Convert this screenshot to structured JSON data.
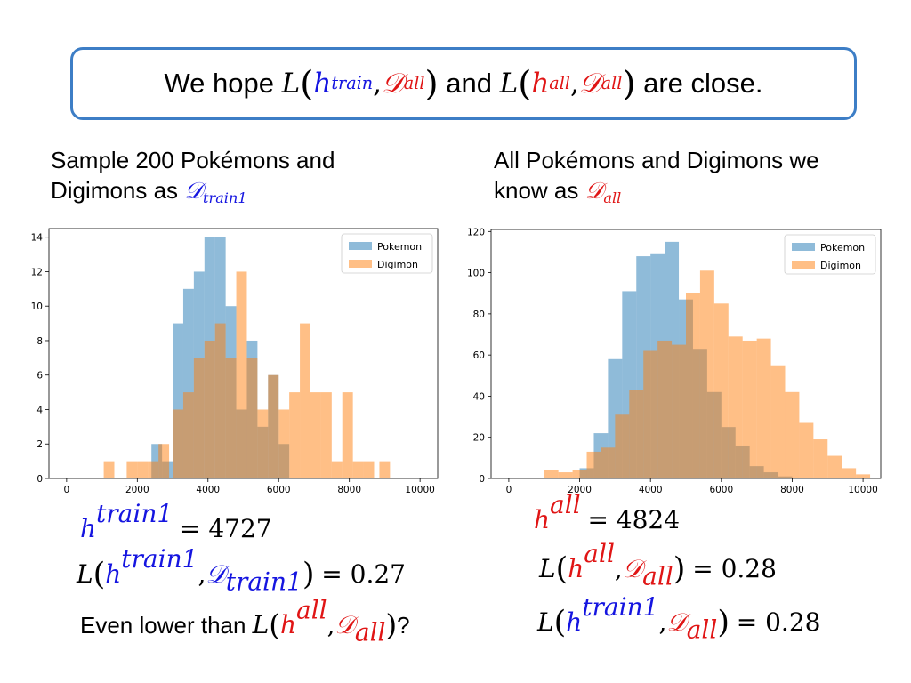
{
  "headline": {
    "prefix": "We hope ",
    "L": "L",
    "h": "h",
    "train": "train",
    "comma": ",",
    "D": "𝒟",
    "all": "all",
    "and": " and ",
    "suffix": " are close."
  },
  "left_caption": {
    "line1": "Sample 200 Pokémons and",
    "line2": "Digimons as ",
    "D": "𝒟",
    "sub": "train1"
  },
  "right_caption": {
    "line1": "All Pokémons and Digimons we",
    "line2": "know as ",
    "D": "𝒟",
    "sub": "all"
  },
  "left_results": {
    "h_train1_value": "= 4727",
    "loss_train1_value": "= 0.27",
    "question_prefix": "Even lower than ",
    "question_mark": "?"
  },
  "right_results": {
    "h_all_value": "= 4824",
    "loss_all_value": "= 0.28",
    "loss_train1_all_value": "= 0.28"
  },
  "symbols": {
    "L": "L",
    "h": "h",
    "D": "𝒟",
    "train1": "train1",
    "all": "all",
    "comma": ","
  },
  "colors": {
    "pokemon": "#1f77b4",
    "digimon": "#ff7f0e",
    "math_blue": "#1515e0",
    "math_red": "#e01515",
    "border": "#3d7ec6"
  },
  "chart_data": [
    {
      "type": "histogram",
      "x_ticks": [
        0,
        2000,
        4000,
        6000,
        8000,
        10000
      ],
      "y_ticks": [
        0,
        2,
        4,
        6,
        8,
        10,
        12,
        14
      ],
      "xlim": [
        -500,
        10500
      ],
      "ylim": [
        0,
        14.5
      ],
      "legend_position": "top-right",
      "series": [
        {
          "name": "Pokemon",
          "color": "#1f77b4",
          "bins": [
            [
              2400,
              2700,
              2
            ],
            [
              2700,
              3000,
              1
            ],
            [
              3000,
              3300,
              9
            ],
            [
              3300,
              3600,
              11
            ],
            [
              3600,
              3900,
              12
            ],
            [
              3900,
              4200,
              14
            ],
            [
              4200,
              4500,
              14
            ],
            [
              4500,
              4800,
              10
            ],
            [
              4800,
              5100,
              4
            ],
            [
              5100,
              5400,
              8
            ],
            [
              5400,
              5700,
              3
            ],
            [
              5700,
              6000,
              6
            ],
            [
              6000,
              6300,
              2
            ]
          ]
        },
        {
          "name": "Digimon",
          "color": "#ff7f0e",
          "bins": [
            [
              1050,
              1350,
              1
            ],
            [
              1700,
              2000,
              1
            ],
            [
              2000,
              2300,
              1
            ],
            [
              2300,
              2600,
              1
            ],
            [
              2600,
              2900,
              2
            ],
            [
              3000,
              3300,
              4
            ],
            [
              3300,
              3600,
              5
            ],
            [
              3600,
              3900,
              7
            ],
            [
              3900,
              4200,
              8
            ],
            [
              4200,
              4500,
              9
            ],
            [
              4500,
              4800,
              7
            ],
            [
              4800,
              5100,
              12
            ],
            [
              5100,
              5400,
              7
            ],
            [
              5400,
              5700,
              4
            ],
            [
              5700,
              6000,
              6
            ],
            [
              6000,
              6300,
              4
            ],
            [
              6300,
              6600,
              5
            ],
            [
              6600,
              6900,
              9
            ],
            [
              6900,
              7200,
              5
            ],
            [
              7200,
              7500,
              5
            ],
            [
              7500,
              7800,
              1
            ],
            [
              7800,
              8100,
              5
            ],
            [
              8100,
              8400,
              1
            ],
            [
              8400,
              8700,
              1
            ],
            [
              8850,
              9150,
              1
            ]
          ]
        }
      ]
    },
    {
      "type": "histogram",
      "x_ticks": [
        0,
        2000,
        4000,
        6000,
        8000,
        10000
      ],
      "y_ticks": [
        0,
        20,
        40,
        60,
        80,
        100,
        120
      ],
      "xlim": [
        -500,
        10500
      ],
      "ylim": [
        0,
        121
      ],
      "legend_position": "top-right",
      "series": [
        {
          "name": "Pokemon",
          "color": "#1f77b4",
          "bins": [
            [
              2000,
              2400,
              5
            ],
            [
              2400,
              2800,
              22
            ],
            [
              2800,
              3200,
              58
            ],
            [
              3200,
              3600,
              91
            ],
            [
              3600,
              4000,
              108
            ],
            [
              4000,
              4400,
              109
            ],
            [
              4400,
              4800,
              115
            ],
            [
              4800,
              5200,
              87
            ],
            [
              5200,
              5600,
              63
            ],
            [
              5600,
              6000,
              42
            ],
            [
              6000,
              6400,
              25
            ],
            [
              6400,
              6800,
              16
            ],
            [
              6800,
              7200,
              6
            ],
            [
              7200,
              7600,
              3
            ],
            [
              7600,
              8000,
              1
            ]
          ]
        },
        {
          "name": "Digimon",
          "color": "#ff7f0e",
          "bins": [
            [
              1000,
              1400,
              4
            ],
            [
              1400,
              1800,
              3
            ],
            [
              1800,
              2200,
              4
            ],
            [
              2200,
              2600,
              13
            ],
            [
              2600,
              3000,
              15
            ],
            [
              3000,
              3400,
              31
            ],
            [
              3400,
              3800,
              43
            ],
            [
              3800,
              4200,
              62
            ],
            [
              4200,
              4600,
              67
            ],
            [
              4600,
              5000,
              65
            ],
            [
              5000,
              5400,
              90
            ],
            [
              5400,
              5800,
              101
            ],
            [
              5800,
              6200,
              85
            ],
            [
              6200,
              6600,
              69
            ],
            [
              6600,
              7000,
              67
            ],
            [
              7000,
              7400,
              68
            ],
            [
              7400,
              7800,
              55
            ],
            [
              7800,
              8200,
              42
            ],
            [
              8200,
              8600,
              27
            ],
            [
              8600,
              9000,
              19
            ],
            [
              9000,
              9400,
              11
            ],
            [
              9400,
              9800,
              5
            ],
            [
              9800,
              10200,
              2
            ]
          ]
        }
      ]
    }
  ]
}
